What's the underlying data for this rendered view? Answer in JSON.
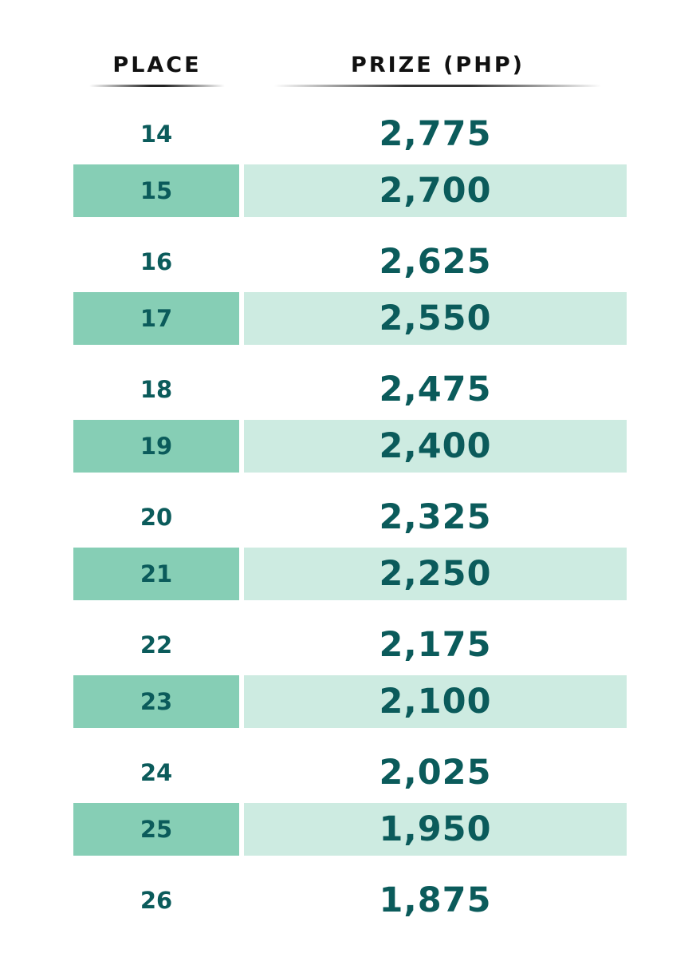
{
  "table": {
    "headers": {
      "place": "PLACE",
      "prize": "PRIZE (PHP)"
    },
    "rows": [
      {
        "place": "14",
        "prize": "2,775"
      },
      {
        "place": "15",
        "prize": "2,700"
      },
      {
        "place": "16",
        "prize": "2,625"
      },
      {
        "place": "17",
        "prize": "2,550"
      },
      {
        "place": "18",
        "prize": "2,475"
      },
      {
        "place": "19",
        "prize": "2,400"
      },
      {
        "place": "20",
        "prize": "2,325"
      },
      {
        "place": "21",
        "prize": "2,250"
      },
      {
        "place": "22",
        "prize": "2,175"
      },
      {
        "place": "23",
        "prize": "2,100"
      },
      {
        "place": "24",
        "prize": "2,025"
      },
      {
        "place": "25",
        "prize": "1,950"
      },
      {
        "place": "26",
        "prize": "1,875"
      }
    ]
  },
  "colors": {
    "text": "#0b5b5b",
    "header_text": "#111111",
    "shaded_place_bg": "#86ceb5",
    "shaded_prize_bg": "#cdebe1"
  }
}
